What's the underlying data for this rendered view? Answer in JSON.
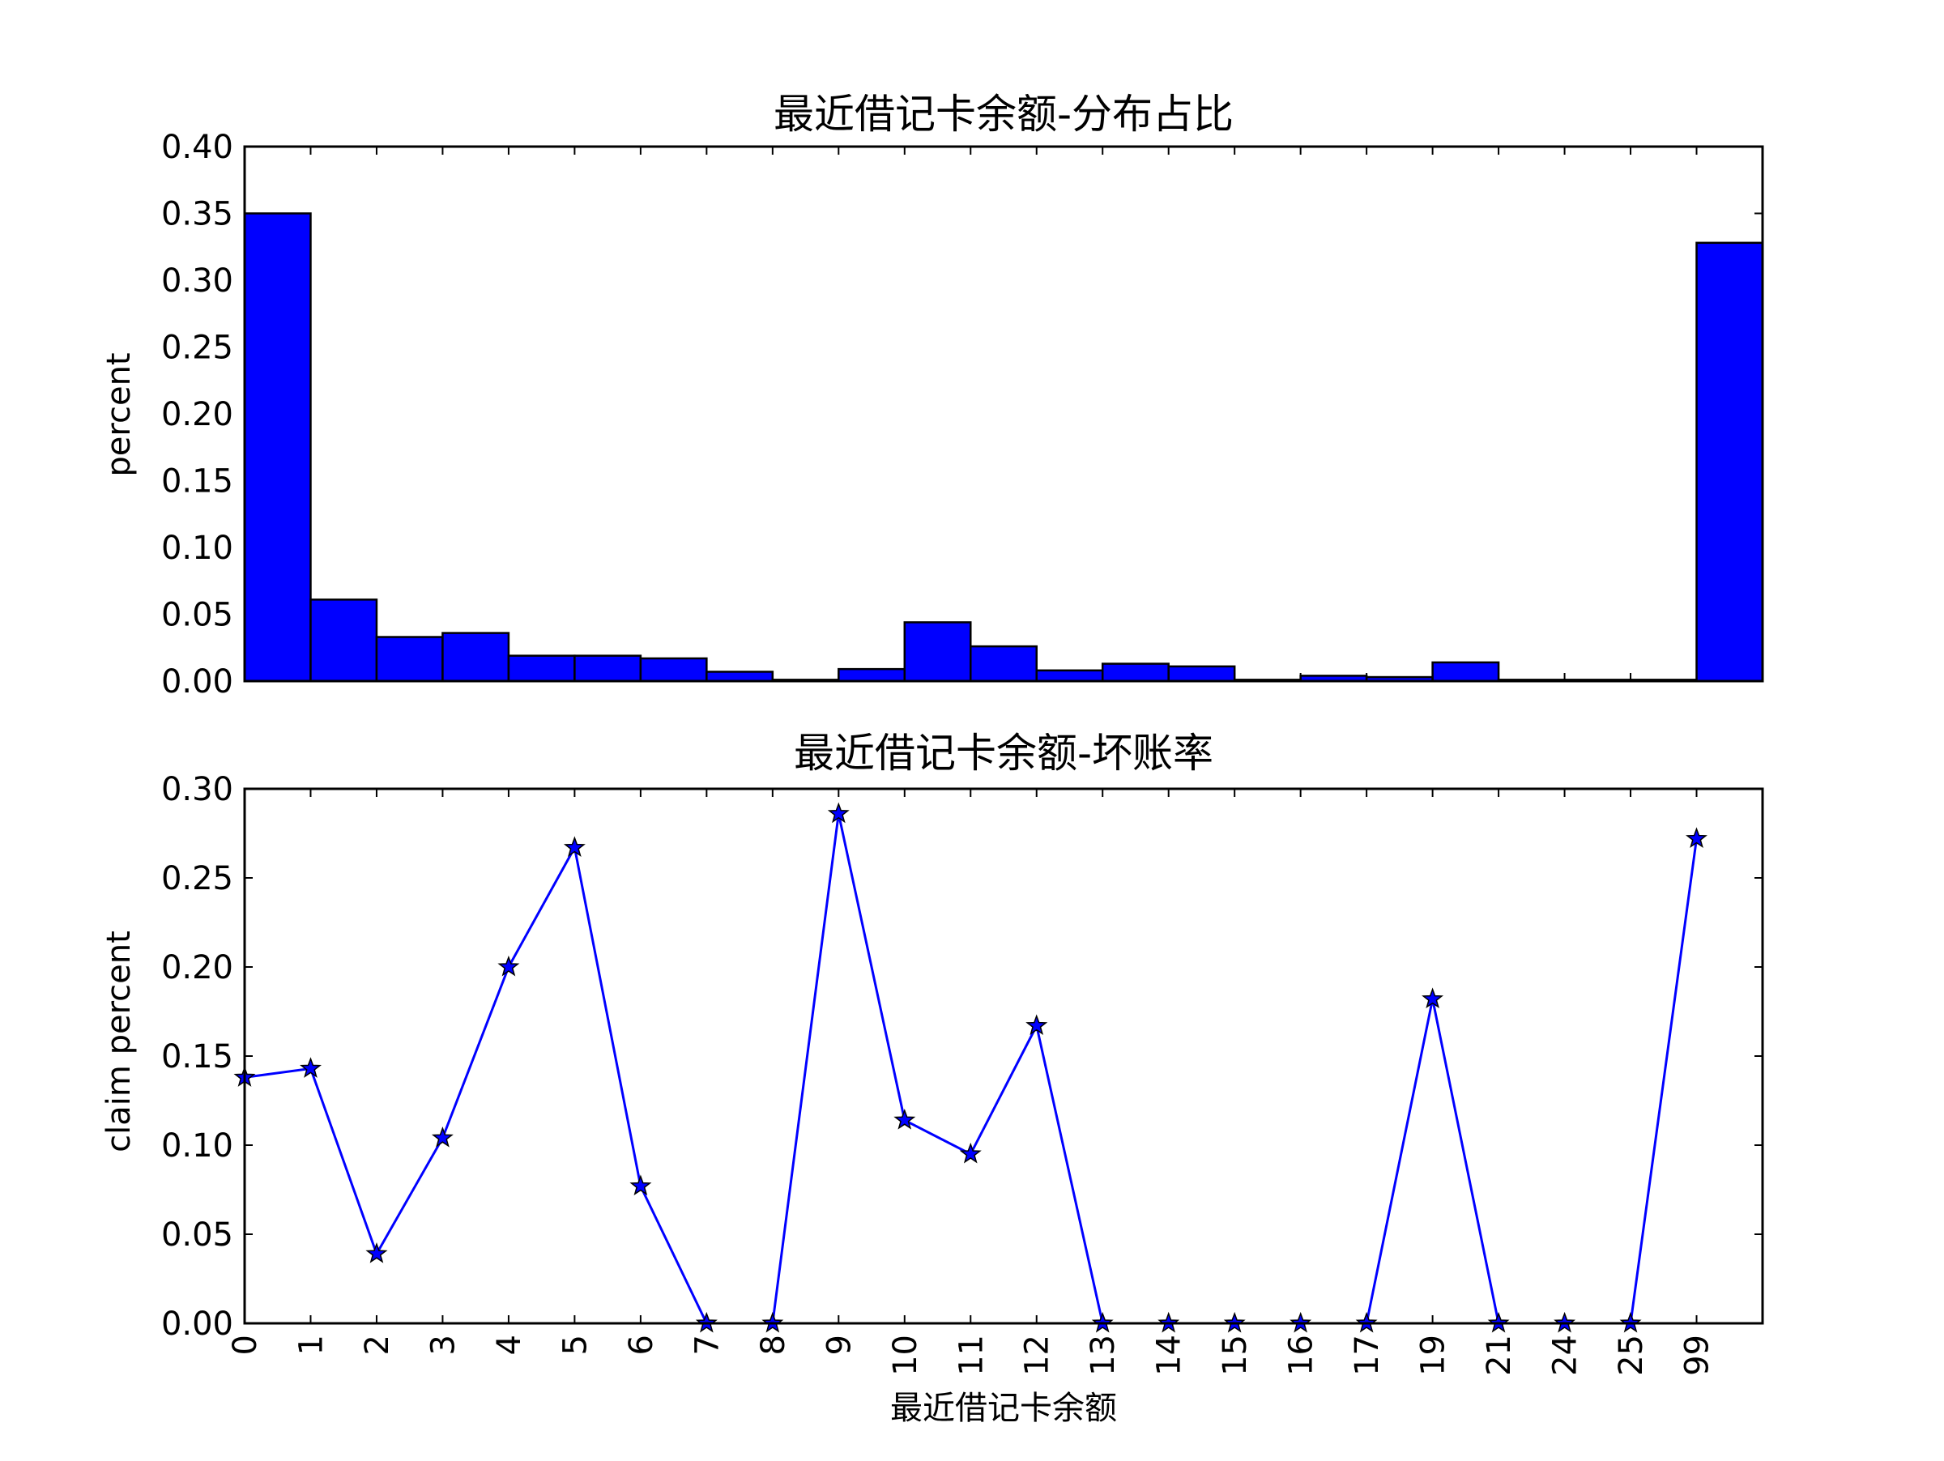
{
  "chart_data": [
    {
      "type": "bar",
      "title": "最近借记卡余额-分布占比",
      "xlabel": "",
      "ylabel": "percent",
      "ylim": [
        0,
        0.4
      ],
      "yticks": [
        "0.00",
        "0.05",
        "0.10",
        "0.15",
        "0.20",
        "0.25",
        "0.30",
        "0.35",
        "0.40"
      ],
      "categories": [
        "0",
        "1",
        "2",
        "3",
        "4",
        "5",
        "6",
        "7",
        "8",
        "9",
        "10",
        "11",
        "12",
        "13",
        "14",
        "15",
        "16",
        "17",
        "19",
        "21",
        "24",
        "25",
        "99"
      ],
      "values": [
        0.35,
        0.061,
        0.033,
        0.036,
        0.019,
        0.019,
        0.017,
        0.007,
        0.001,
        0.009,
        0.044,
        0.026,
        0.008,
        0.013,
        0.011,
        0.001,
        0.004,
        0.003,
        0.014,
        0.001,
        0.001,
        0.001,
        0.328
      ],
      "bar_color": "#0000ff",
      "grid": false
    },
    {
      "type": "line",
      "title": "最近借记卡余额-坏账率",
      "xlabel": "最近借记卡余额",
      "ylabel": "claim percent",
      "ylim": [
        0,
        0.3
      ],
      "yticks": [
        "0.00",
        "0.05",
        "0.10",
        "0.15",
        "0.20",
        "0.25",
        "0.30"
      ],
      "categories": [
        "0",
        "1",
        "2",
        "3",
        "4",
        "5",
        "6",
        "7",
        "8",
        "9",
        "10",
        "11",
        "12",
        "13",
        "14",
        "15",
        "16",
        "17",
        "19",
        "21",
        "24",
        "25",
        "99"
      ],
      "values": [
        0.138,
        0.143,
        0.039,
        0.104,
        0.2,
        0.267,
        0.077,
        0.0,
        0.0,
        0.286,
        0.114,
        0.095,
        0.167,
        0.0,
        0.0,
        0.0,
        0.0,
        0.0,
        0.182,
        0.0,
        0.0,
        0.0,
        0.272
      ],
      "marker": "star",
      "line_color": "#0000ff",
      "grid": false
    }
  ]
}
